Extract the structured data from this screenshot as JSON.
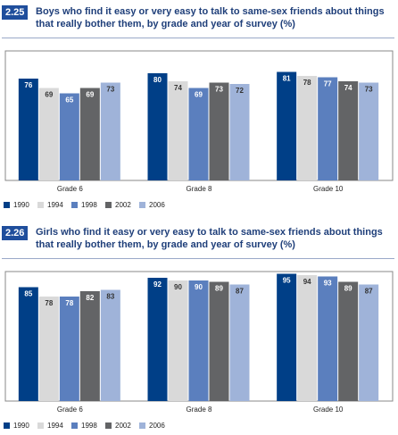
{
  "chart_data": [
    {
      "type": "bar",
      "figure_label": "2.25",
      "title": "Boys who find it easy or very easy to talk to same-sex friends about things that really bother them, by grade and year of survey (%)",
      "categories": [
        "Grade 6",
        "Grade 8",
        "Grade 10"
      ],
      "series": [
        {
          "name": "1990",
          "color": "#003f87",
          "values": [
            76,
            80,
            81
          ]
        },
        {
          "name": "1994",
          "color": "#d9d9d9",
          "values": [
            69,
            74,
            78
          ]
        },
        {
          "name": "1998",
          "color": "#5b7fbe",
          "values": [
            65,
            69,
            77
          ]
        },
        {
          "name": "2002",
          "color": "#636466",
          "values": [
            69,
            73,
            74
          ]
        },
        {
          "name": "2006",
          "color": "#9fb3d9",
          "values": [
            73,
            72,
            73
          ]
        }
      ]
    },
    {
      "type": "bar",
      "figure_label": "2.26",
      "title": "Girls who find it easy or very easy to talk to same-sex friends about things that really bother them, by grade and year of survey (%)",
      "categories": [
        "Grade 6",
        "Grade 8",
        "Grade 10"
      ],
      "series": [
        {
          "name": "1990",
          "color": "#003f87",
          "values": [
            85,
            92,
            95
          ]
        },
        {
          "name": "1994",
          "color": "#d9d9d9",
          "values": [
            78,
            90,
            94
          ]
        },
        {
          "name": "1998",
          "color": "#5b7fbe",
          "values": [
            78,
            90,
            93
          ]
        },
        {
          "name": "2002",
          "color": "#636466",
          "values": [
            82,
            89,
            89
          ]
        },
        {
          "name": "2006",
          "color": "#9fb3d9",
          "values": [
            83,
            87,
            87
          ]
        }
      ]
    }
  ]
}
